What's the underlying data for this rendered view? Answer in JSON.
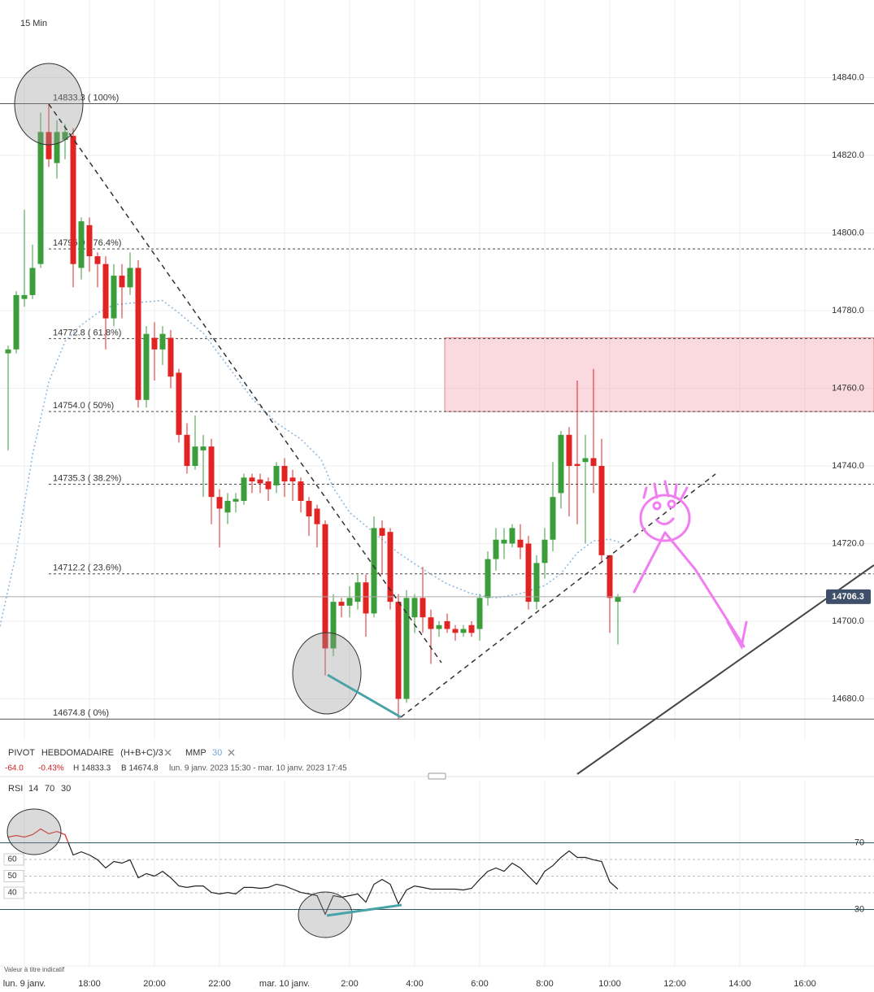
{
  "chart_data": [
    {
      "type": "candlestick",
      "title": "15 Min",
      "up_color": "#3b9e3b",
      "down_color": "#e02424",
      "open": [
        14769,
        14770,
        14783,
        14784,
        14792,
        14826,
        14818,
        14824,
        14825,
        14791,
        14802,
        14794,
        14792,
        14778,
        14789,
        14786,
        14791,
        14757,
        14773,
        14770,
        14773,
        14764,
        14748,
        14740,
        14744,
        14745,
        14732,
        14728,
        14730.8,
        14731,
        14737,
        14736.5,
        14736,
        14735,
        14740,
        14737,
        14736,
        14731,
        14729,
        14725,
        14693,
        14705,
        14704,
        14705,
        14710,
        14702,
        14724,
        14723,
        14705,
        14680,
        14701,
        14706,
        14701,
        14698,
        14700,
        14698,
        14697,
        14699,
        14698,
        14706,
        14716,
        14720,
        14720,
        14721,
        14720,
        14705,
        14715,
        14721,
        14733,
        14748,
        14740.5,
        14741,
        14742,
        14740,
        14717,
        14705
      ],
      "high": [
        14771,
        14785,
        14806,
        14797,
        14831,
        14833.3,
        14829,
        14828,
        14827,
        14804,
        14804,
        14795,
        14794,
        14792,
        14792,
        14795,
        14793,
        14776,
        14777,
        14776,
        14775,
        14765,
        14751,
        14753,
        14748,
        14747,
        14734,
        14733,
        14733,
        14738,
        14738,
        14738,
        14737,
        14741,
        14742,
        14739,
        14737,
        14732,
        14730,
        14726,
        14707,
        14706,
        14709,
        14712,
        14712,
        14727,
        14726,
        14724,
        14707,
        14708,
        14707,
        14714,
        14703,
        14700,
        14702,
        14699,
        14699,
        14700,
        14707,
        14718,
        14724,
        14724,
        14725,
        14725,
        14722,
        14717,
        14724,
        14741,
        14749,
        14750,
        14762,
        14748,
        14765,
        14747,
        14717,
        14707
      ],
      "low": [
        14744,
        14769,
        14781,
        14783,
        14791,
        14817,
        14814,
        14819,
        14786,
        14788,
        14790,
        14786,
        14770,
        14776,
        14778,
        14784,
        14755,
        14755,
        14762,
        14766,
        14760,
        14746,
        14738,
        14739,
        14732,
        14725,
        14719,
        14725,
        14728,
        14730,
        14733,
        14733,
        14731,
        14733,
        14732,
        14731,
        14728,
        14722,
        14719,
        14686,
        14691,
        14701,
        14701,
        14703,
        14696,
        14701,
        14712,
        14703,
        14674.8,
        14679,
        14697,
        14697,
        14689,
        14696,
        14697,
        14695,
        14696,
        14696,
        14695,
        14704,
        14713,
        14716,
        14719,
        14716,
        14703,
        14703,
        14711,
        14718,
        14729,
        14727,
        14725,
        14720,
        14733,
        14715,
        14697,
        14694
      ],
      "close": [
        14770,
        14784,
        14784,
        14791,
        14826,
        14819,
        14826,
        14826,
        14792,
        14803,
        14794,
        14792,
        14778,
        14789,
        14786,
        14791,
        14757,
        14774,
        14770,
        14774,
        14763,
        14748,
        14740,
        14745,
        14745,
        14732,
        14729,
        14731,
        14731.5,
        14737,
        14736,
        14735.5,
        14734,
        14740,
        14736,
        14736,
        14731,
        14727,
        14725,
        14693,
        14705,
        14704,
        14706,
        14710,
        14702,
        14724,
        14722,
        14705,
        14680,
        14706,
        14706,
        14701,
        14698,
        14699,
        14698,
        14697,
        14698,
        14697,
        14706,
        14716,
        14721,
        14721,
        14724,
        14719,
        14705,
        14715,
        14721,
        14732,
        14748,
        14740,
        14740,
        14742,
        14740,
        14717,
        14706,
        14706.3
      ],
      "xlim": [
        -1,
        100.5
      ],
      "xticks": [
        {
          "value": 2,
          "label": "lun. 9 janv."
        },
        {
          "value": 10,
          "label": "18:00"
        },
        {
          "value": 18,
          "label": "20:00"
        },
        {
          "value": 26,
          "label": "22:00"
        },
        {
          "value": 34,
          "label": "mar. 10 janv."
        },
        {
          "value": 42,
          "label": "2:00"
        },
        {
          "value": 50,
          "label": "4:00"
        },
        {
          "value": 58,
          "label": "6:00"
        },
        {
          "value": 66,
          "label": "8:00"
        },
        {
          "value": 74,
          "label": "10:00"
        },
        {
          "value": 82,
          "label": "12:00"
        },
        {
          "value": 90,
          "label": "14:00"
        },
        {
          "value": 98,
          "label": "16:00"
        }
      ],
      "ylim": [
        14660,
        14860
      ],
      "yticks": [
        {
          "value": 14680,
          "label": "14680.0"
        },
        {
          "value": 14700,
          "label": "14700.0"
        },
        {
          "value": 14720,
          "label": "14720.0"
        },
        {
          "value": 14740,
          "label": "14740.0"
        },
        {
          "value": 14760,
          "label": "14760.0"
        },
        {
          "value": 14780,
          "label": "14780.0"
        },
        {
          "value": 14800,
          "label": "14800.0"
        },
        {
          "value": 14820,
          "label": "14820.0"
        },
        {
          "value": 14840,
          "label": "14840.0"
        }
      ],
      "grid": true,
      "last_price": 14706.3,
      "fib_levels": [
        {
          "value": 14833.3,
          "label": "14833.3 ( 100%)"
        },
        {
          "value": 14795.9,
          "label": "14795.9 ( 76.4%)"
        },
        {
          "value": 14772.8,
          "label": "14772.8 ( 61.8%)"
        },
        {
          "value": 14754.0,
          "label": "14754.0 ( 50%)"
        },
        {
          "value": 14735.3,
          "label": "14735.3 ( 38.2%)"
        },
        {
          "value": 14712.2,
          "label": "14712.2 ( 23.6%)"
        },
        {
          "value": 14674.8,
          "label": "14674.8 ( 0%)"
        }
      ],
      "zone": {
        "start": 53.7,
        "low": 14754.0,
        "high": 14773.0
      },
      "moving_average": {
        "name": "MMP",
        "period": 30,
        "color": "#8fb9e0",
        "x": [
          -1,
          1,
          3,
          5,
          7,
          9,
          11,
          13,
          16,
          19,
          21,
          24,
          27,
          30,
          33,
          36,
          38.5,
          40,
          42,
          45,
          48,
          51,
          54,
          57,
          60,
          63,
          66,
          68,
          70,
          72,
          74,
          75.5
        ],
        "values": [
          14698.7,
          14717.6,
          14742.8,
          14761.6,
          14772.1,
          14776.3,
          14779.4,
          14781.5,
          14782.1,
          14782.6,
          14779.4,
          14774.2,
          14765.8,
          14757.4,
          14751.1,
          14746.9,
          14741.7,
          14734.3,
          14728.0,
          14722.8,
          14717.6,
          14713.4,
          14709.6,
          14707.1,
          14706.0,
          14707.1,
          14709.2,
          14712.3,
          14717.6,
          14720.7,
          14721.1,
          14720.1
        ]
      },
      "pivot": "PIVOT HEBDOMADAIRE (H+B+C)/3",
      "change": "-64.0",
      "change_pct": "-0.43%",
      "high_label": "H 14833.3",
      "low_label": "B 14674.8",
      "range": "lun. 9 janv. 2023 15:30 - mar. 10 janv. 2023 17:45",
      "footnote": "Valeur à titre indicatif"
    },
    {
      "type": "line",
      "name": "RSI",
      "period": 14,
      "upper": 70,
      "lower": 30,
      "color": "#222222",
      "overbought_color": "#e02424",
      "values": [
        73.4,
        74.4,
        73.4,
        74.9,
        78.3,
        75.4,
        76.8,
        74.9,
        62.7,
        64.6,
        62.7,
        59.8,
        54.9,
        58.8,
        57.8,
        59.8,
        49.0,
        51.5,
        50.0,
        52.9,
        49.0,
        44.1,
        43.2,
        44.1,
        44.1,
        40.2,
        39.3,
        40.2,
        39.3,
        43.2,
        43.2,
        42.7,
        43.2,
        45.1,
        44.1,
        42.2,
        40.2,
        39.3,
        38.3,
        27.1,
        38.3,
        37.3,
        38.3,
        39.3,
        34.4,
        45.1,
        48.0,
        45.1,
        33.4,
        41.7,
        44.1,
        43.2,
        42.2,
        42.2,
        42.2,
        42.2,
        41.7,
        42.7,
        48.0,
        52.9,
        54.9,
        52.9,
        57.8,
        54.9,
        50.0,
        45.1,
        52.9,
        56.3,
        61.2,
        65.1,
        61.2,
        61.2,
        59.8,
        58.8,
        46.6,
        42.2
      ],
      "xlim": [
        -1,
        100.5
      ],
      "ylim": [
        0,
        100
      ],
      "yticks": [
        30,
        70
      ],
      "levels": [
        40,
        50,
        60
      ]
    }
  ]
}
